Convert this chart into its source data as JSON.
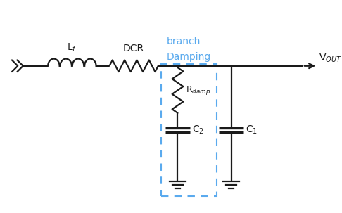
{
  "bg_color": "#ffffff",
  "line_color": "#1a1a1a",
  "damp_box_color": "#5aaaee",
  "damp_text_color": "#5aaaee",
  "figsize": [
    4.86,
    3.03
  ],
  "dpi": 100,
  "lf_label": "L$_f$",
  "dcr_label": "DCR",
  "rdamp_label": "R$_{damp}$",
  "c2_label": "C$_2$",
  "c1_label": "C$_1$",
  "vout_label": "V$_{OUT}$",
  "damp_branch_line1": "Damping",
  "damp_branch_line2": "branch"
}
